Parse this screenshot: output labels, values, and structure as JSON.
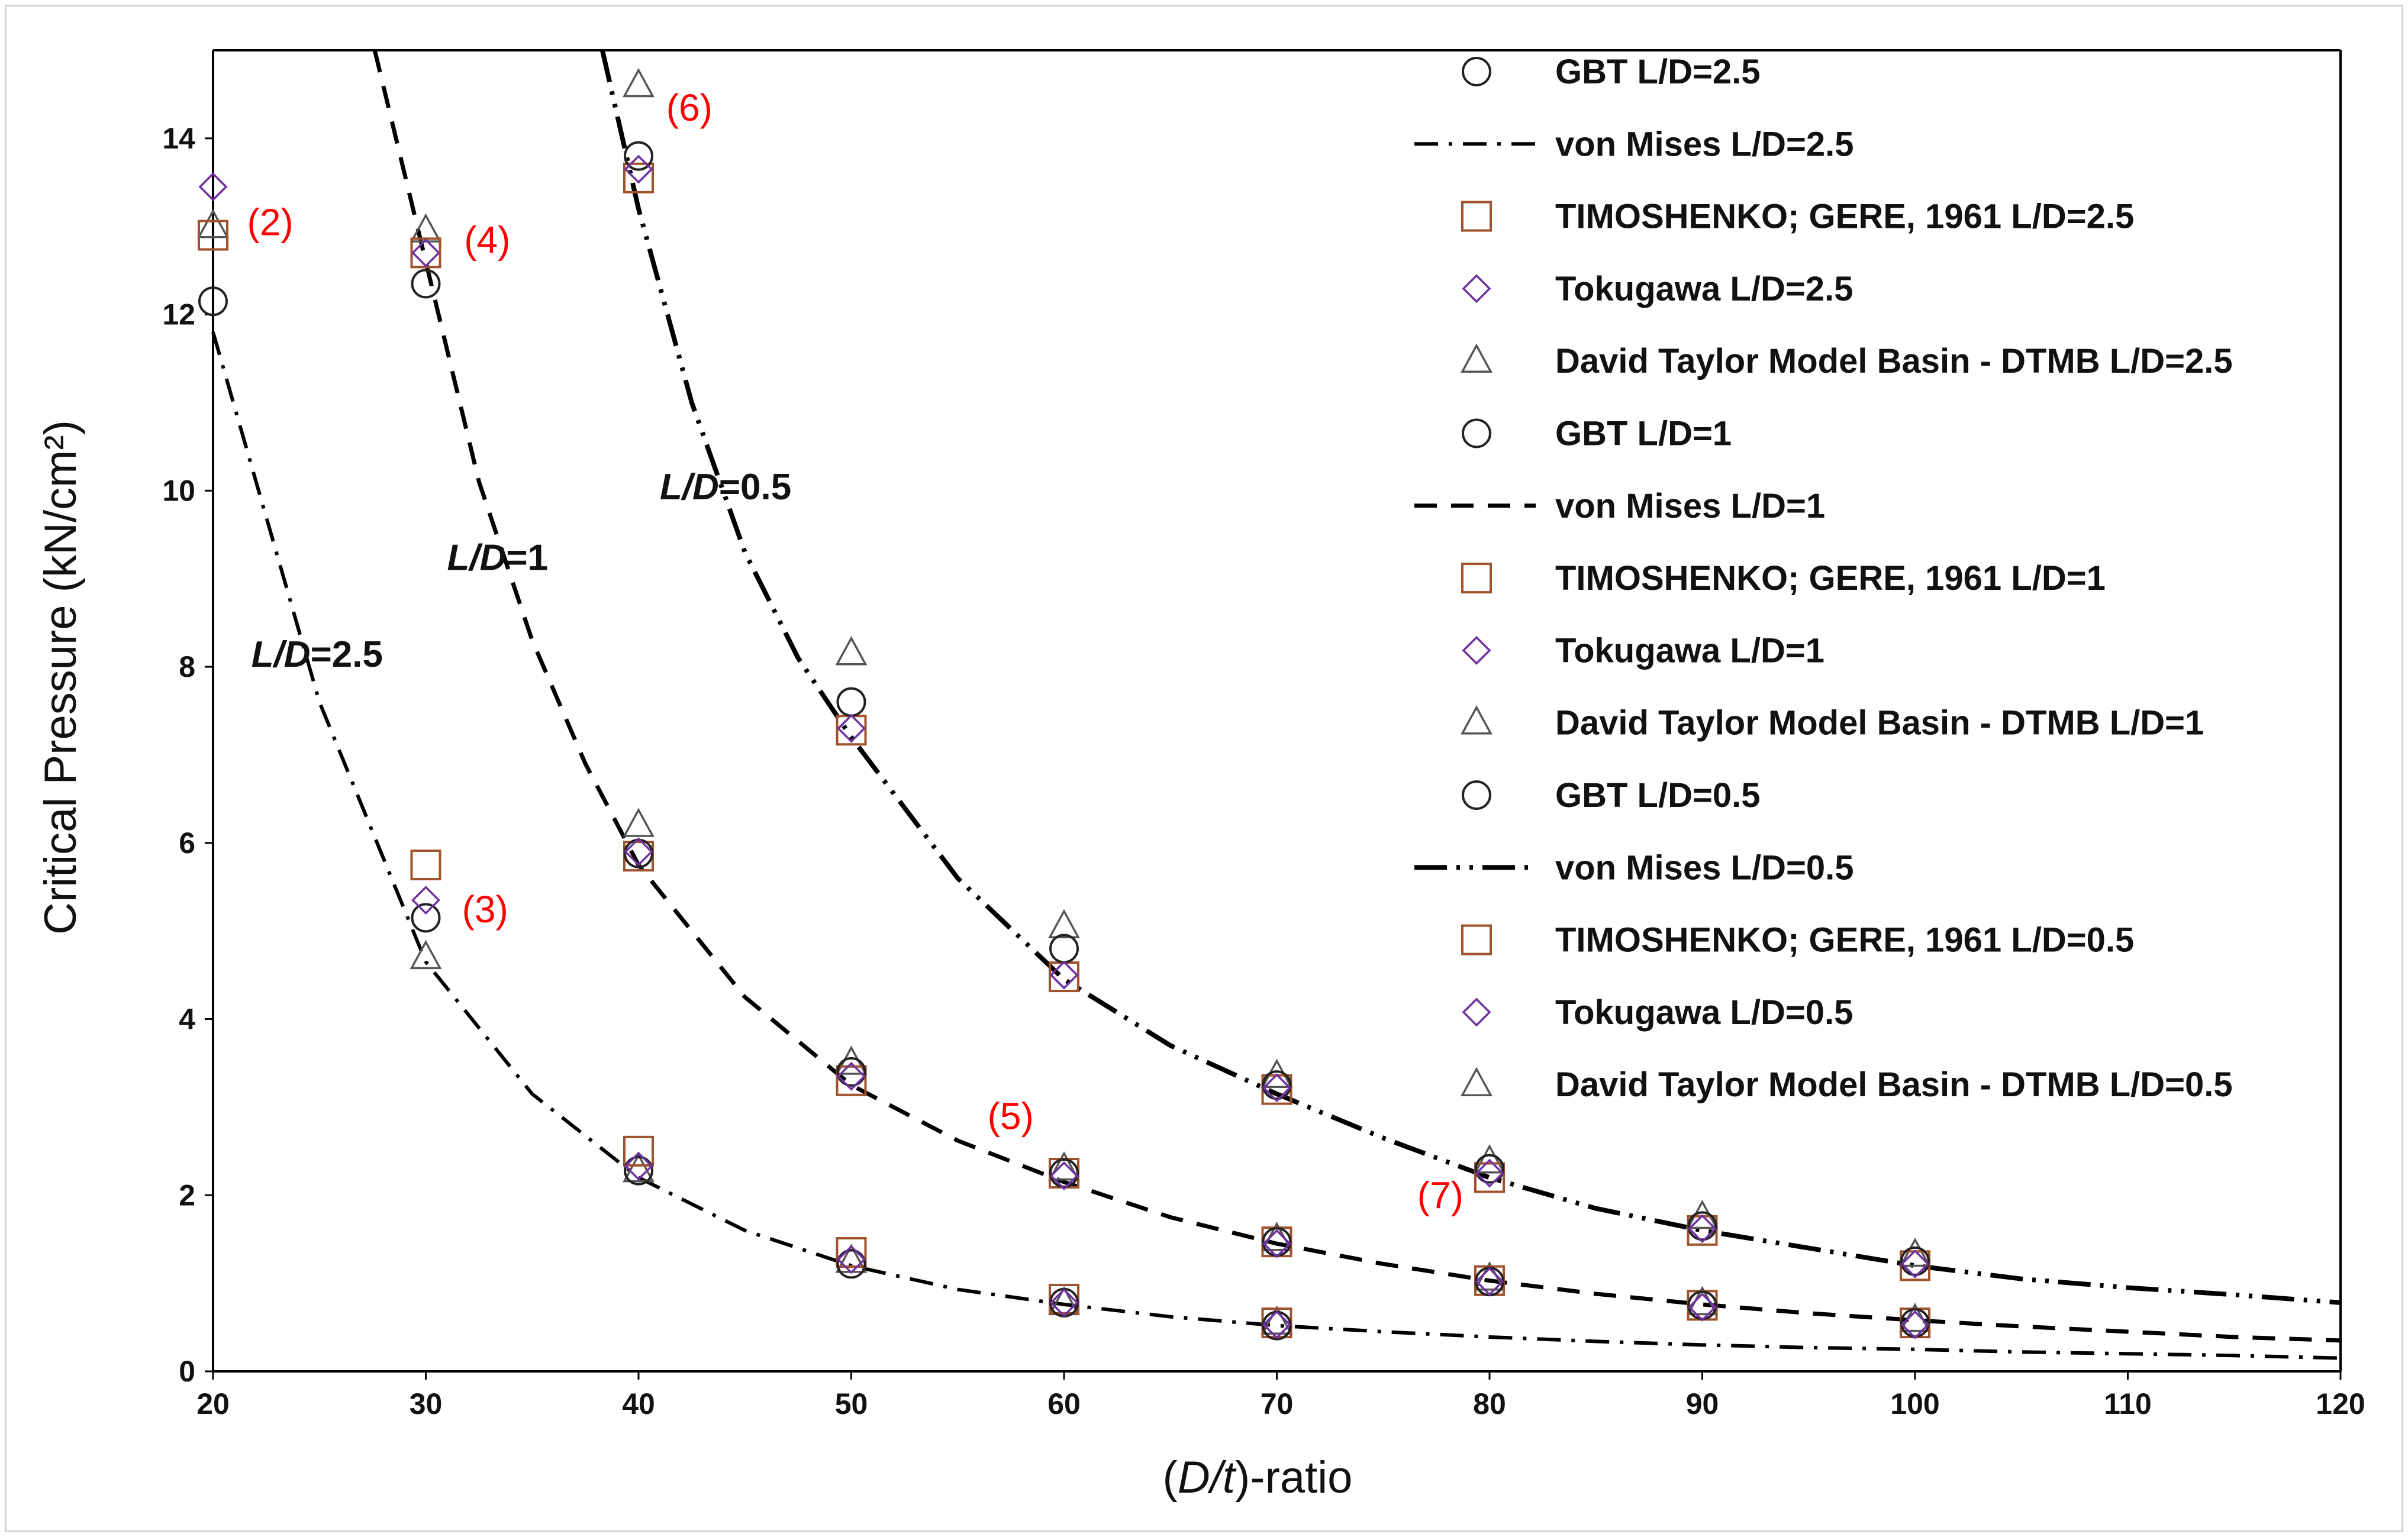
{
  "chart_data": {
    "type": "scatter",
    "xlabel_prefix": "(",
    "xlabel_var": "D/t",
    "xlabel_suffix": ")-ratio",
    "ylabel": "Critical Pressure (kN/cm²)",
    "xlim": [
      20,
      120
    ],
    "ylim": [
      0,
      15
    ],
    "xticks": [
      20,
      30,
      40,
      50,
      60,
      70,
      80,
      90,
      100,
      110,
      120
    ],
    "yticks": [
      0,
      2,
      4,
      6,
      8,
      10,
      12,
      14
    ],
    "grid": false,
    "legend_position": "top-right",
    "colors": {
      "square": "#a0522d",
      "diamond": "#7030a0",
      "circle": "#222222",
      "triangle": "#555555",
      "curve": "#000000",
      "annotation": "#ff0000"
    },
    "curves": [
      {
        "name": "von Mises L/D=2.5",
        "style": "dashdot",
        "x": [
          20,
          25,
          30,
          35,
          40,
          45,
          50,
          55,
          60,
          65,
          70,
          75,
          80,
          85,
          90,
          95,
          100,
          105,
          110,
          115,
          120
        ],
        "y": [
          11.8,
          7.6,
          4.65,
          3.15,
          2.2,
          1.6,
          1.2,
          0.93,
          0.76,
          0.62,
          0.52,
          0.45,
          0.39,
          0.34,
          0.3,
          0.27,
          0.25,
          0.22,
          0.2,
          0.18,
          0.15
        ]
      },
      {
        "name": "von Mises L/D=1",
        "style": "dash",
        "x": [
          27.6,
          30,
          32.5,
          35,
          37.5,
          40,
          45,
          50,
          55,
          60,
          65,
          70,
          75,
          80,
          85,
          90,
          95,
          100,
          105,
          110,
          115,
          120
        ],
        "y": [
          15.0,
          12.6,
          10.1,
          8.3,
          6.9,
          5.75,
          4.25,
          3.25,
          2.62,
          2.15,
          1.75,
          1.45,
          1.22,
          1.03,
          0.88,
          0.76,
          0.66,
          0.58,
          0.51,
          0.45,
          0.39,
          0.35
        ]
      },
      {
        "name": "von Mises L/D=0.5",
        "style": "dashdotdot",
        "x": [
          38.3,
          40,
          42.5,
          45,
          47.5,
          50,
          55,
          60,
          65,
          70,
          75,
          80,
          85,
          90,
          95,
          100,
          105,
          110,
          115,
          120
        ],
        "y": [
          15.0,
          13.2,
          11.0,
          9.3,
          8.1,
          7.2,
          5.6,
          4.45,
          3.7,
          3.15,
          2.65,
          2.2,
          1.85,
          1.6,
          1.4,
          1.2,
          1.05,
          0.95,
          0.87,
          0.78
        ]
      }
    ],
    "series": [
      {
        "name": "GBT L/D=2.5",
        "marker": "circle",
        "x": [
          20,
          30,
          40,
          50,
          60,
          70
        ],
        "y": [
          12.15,
          5.15,
          2.28,
          1.22,
          0.78,
          0.52
        ]
      },
      {
        "name": "TIMOSHENKO; GERE, 1961 L/D=2.5",
        "marker": "square",
        "x": [
          20,
          30,
          40,
          50,
          60,
          70
        ],
        "y": [
          12.9,
          5.75,
          2.5,
          1.35,
          0.82,
          0.55
        ]
      },
      {
        "name": "Tokugawa L/D=2.5",
        "marker": "diamond",
        "x": [
          20,
          30,
          40,
          50,
          60,
          70
        ],
        "y": [
          13.45,
          5.35,
          2.33,
          1.27,
          0.78,
          0.53
        ]
      },
      {
        "name": "David Taylor Model Basin - DTMB  L/D=2.5",
        "marker": "triangle",
        "x": [
          20,
          30,
          40,
          50,
          60,
          70
        ],
        "y": [
          13.0,
          4.7,
          2.28,
          1.25,
          0.77,
          0.55
        ]
      },
      {
        "name": "GBT L/D=1",
        "marker": "circle",
        "x": [
          30,
          40,
          50,
          60,
          70,
          80,
          90,
          100
        ],
        "y": [
          12.35,
          5.88,
          3.4,
          2.25,
          1.47,
          1.02,
          0.75,
          0.55
        ]
      },
      {
        "name": "TIMOSHENKO; GERE, 1961 L/D=1",
        "marker": "square",
        "x": [
          30,
          40,
          50,
          60,
          70,
          80,
          90,
          100
        ],
        "y": [
          12.7,
          5.85,
          3.3,
          2.25,
          1.47,
          1.03,
          0.75,
          0.55
        ]
      },
      {
        "name": "Tokugawa L/D=1",
        "marker": "diamond",
        "x": [
          30,
          40,
          50,
          60,
          70,
          80,
          90,
          100
        ],
        "y": [
          12.7,
          5.9,
          3.35,
          2.22,
          1.45,
          1.02,
          0.73,
          0.53
        ]
      },
      {
        "name": "David Taylor Model Basin - DTMB  L/D=1",
        "marker": "triangle",
        "x": [
          30,
          40,
          50,
          60,
          70,
          80,
          90,
          100
        ],
        "y": [
          12.95,
          6.2,
          3.5,
          2.3,
          1.5,
          1.05,
          0.77,
          0.58
        ]
      },
      {
        "name": "GBT L/D=0.5",
        "marker": "circle",
        "x": [
          40,
          50,
          60,
          70,
          80,
          90,
          100
        ],
        "y": [
          13.8,
          7.6,
          4.8,
          3.25,
          2.3,
          1.65,
          1.25
        ]
      },
      {
        "name": "TIMOSHENKO; GERE, 1961 L/D=0.5",
        "marker": "square",
        "x": [
          40,
          50,
          60,
          70,
          80,
          90,
          100
        ],
        "y": [
          13.55,
          7.28,
          4.48,
          3.2,
          2.2,
          1.6,
          1.2
        ]
      },
      {
        "name": "Tokugawa L/D=0.5",
        "marker": "diamond",
        "x": [
          40,
          50,
          60,
          70,
          80,
          90,
          100
        ],
        "y": [
          13.65,
          7.3,
          4.5,
          3.22,
          2.25,
          1.62,
          1.22
        ]
      },
      {
        "name": "David Taylor Model Basin - DTMB  L/D=0.5",
        "marker": "triangle",
        "x": [
          40,
          50,
          60,
          70,
          80,
          90,
          100
        ],
        "y": [
          14.6,
          8.15,
          5.05,
          3.35,
          2.38,
          1.75,
          1.32
        ]
      }
    ],
    "legend": [
      {
        "label": "GBT L/D=2.5",
        "kind": "circle"
      },
      {
        "label": "von Mises L/D=2.5",
        "kind": "dashdot"
      },
      {
        "label": "TIMOSHENKO; GERE, 1961 L/D=2.5",
        "kind": "square"
      },
      {
        "label": "Tokugawa L/D=2.5",
        "kind": "diamond"
      },
      {
        "label": "David Taylor Model Basin - DTMB  L/D=2.5",
        "kind": "triangle"
      },
      {
        "label": "GBT L/D=1",
        "kind": "circle"
      },
      {
        "label": "von Mises L/D=1",
        "kind": "dash"
      },
      {
        "label": "TIMOSHENKO; GERE, 1961 L/D=1",
        "kind": "square"
      },
      {
        "label": "Tokugawa L/D=1",
        "kind": "diamond"
      },
      {
        "label": "David Taylor Model Basin - DTMB  L/D=1",
        "kind": "triangle"
      },
      {
        "label": "GBT L/D=0.5",
        "kind": "circle"
      },
      {
        "label": "von Mises L/D=0.5",
        "kind": "dashdotdot"
      },
      {
        "label": "TIMOSHENKO; GERE, 1961 L/D=0.5",
        "kind": "square"
      },
      {
        "label": "Tokugawa L/D=0.5",
        "kind": "diamond"
      },
      {
        "label": "David Taylor Model Basin - DTMB  L/D=0.5",
        "kind": "triangle"
      }
    ],
    "curve_labels": [
      {
        "italic": "L/D",
        "plain": "=2.5",
        "x": 21.8,
        "y": 8.0
      },
      {
        "italic": "L/D",
        "plain": "=1",
        "x": 31.0,
        "y": 9.1
      },
      {
        "italic": "L/D",
        "plain": "=0.5",
        "x": 41.0,
        "y": 9.9
      }
    ],
    "annotations": [
      {
        "text": "(2)",
        "x": 21.6,
        "y": 12.9
      },
      {
        "text": "(4)",
        "x": 31.8,
        "y": 12.7
      },
      {
        "text": "(6)",
        "x": 41.3,
        "y": 14.2
      },
      {
        "text": "(3)",
        "x": 31.7,
        "y": 5.1
      },
      {
        "text": "(5)",
        "x": 56.4,
        "y": 2.75
      },
      {
        "text": "(7)",
        "x": 76.6,
        "y": 1.85
      }
    ]
  }
}
